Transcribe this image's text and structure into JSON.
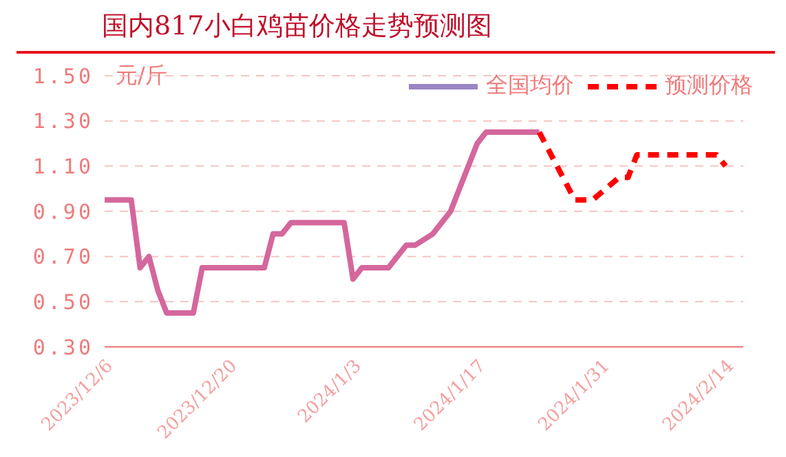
{
  "chart_data": {
    "type": "line",
    "title": "国内817小白鸡苗价格走势预测图",
    "ylabel": "元/斤",
    "ylim": [
      0.3,
      1.5
    ],
    "yticks": [
      {
        "value": 0.3,
        "label": "0.30"
      },
      {
        "value": 0.5,
        "label": "0.50"
      },
      {
        "value": 0.7,
        "label": "0.70"
      },
      {
        "value": 0.9,
        "label": "0.90"
      },
      {
        "value": 1.1,
        "label": "1.10"
      },
      {
        "value": 1.3,
        "label": "1.30"
      },
      {
        "value": 1.5,
        "label": "1.50"
      }
    ],
    "xlim": [
      "2023-12-06",
      "2024-02-16"
    ],
    "xticks": [
      {
        "value": "2023-12-06",
        "label": "2023/12/6"
      },
      {
        "value": "2023-12-20",
        "label": "2023/12/20"
      },
      {
        "value": "2024-01-03",
        "label": "2024/1/3"
      },
      {
        "value": "2024-01-17",
        "label": "2024/1/17"
      },
      {
        "value": "2024-01-31",
        "label": "2024/1/31"
      },
      {
        "value": "2024-02-14",
        "label": "2024/2/14"
      }
    ],
    "grid": "y",
    "legend": "top right",
    "marker": "none",
    "series": [
      {
        "name": "全国均价",
        "color": "#d4679c",
        "line_style": "solid",
        "x": [
          "2023-12-06",
          "2023-12-09",
          "2023-12-10",
          "2023-12-11",
          "2023-12-12",
          "2023-12-13",
          "2023-12-16",
          "2023-12-17",
          "2023-12-24",
          "2023-12-25",
          "2023-12-26",
          "2023-12-27",
          "2024-01-02",
          "2024-01-03",
          "2024-01-04",
          "2024-01-07",
          "2024-01-09",
          "2024-01-10",
          "2024-01-12",
          "2024-01-14",
          "2024-01-17",
          "2024-01-18",
          "2024-01-24"
        ],
        "values": [
          0.95,
          0.95,
          0.65,
          0.7,
          0.55,
          0.45,
          0.45,
          0.65,
          0.65,
          0.8,
          0.8,
          0.85,
          0.85,
          0.6,
          0.65,
          0.65,
          0.75,
          0.75,
          0.8,
          0.9,
          1.2,
          1.25,
          1.25
        ]
      },
      {
        "name": "预测价格",
        "color": "#ff0000",
        "line_style": "dashed",
        "x": [
          "2024-01-24",
          "2024-01-26",
          "2024-01-28",
          "2024-01-30",
          "2024-02-02",
          "2024-02-03",
          "2024-02-04",
          "2024-02-13",
          "2024-02-14"
        ],
        "values": [
          1.25,
          1.1,
          0.95,
          0.95,
          1.05,
          1.05,
          1.15,
          1.15,
          1.1
        ]
      }
    ]
  }
}
